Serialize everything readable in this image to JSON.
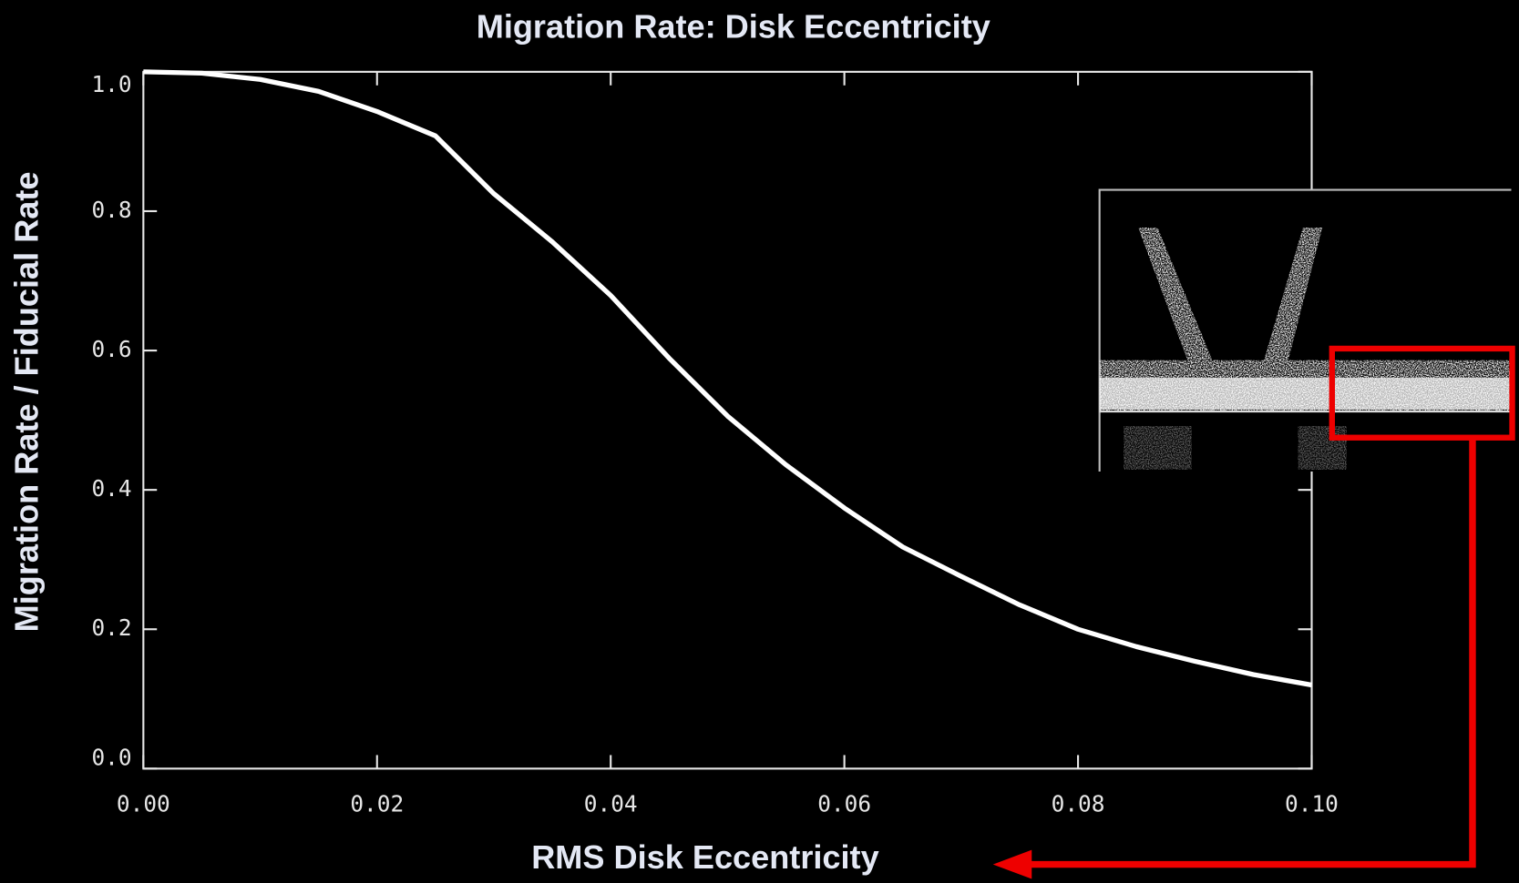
{
  "chart_data": {
    "type": "line",
    "title": "Migration Rate: Disk Eccentricity",
    "xlabel": "RMS Disk Eccentricity",
    "ylabel": "Migration Rate / Fiducial Rate",
    "x": [
      0,
      0.005,
      0.01,
      0.015,
      0.02,
      0.025,
      0.03,
      0.035,
      0.04,
      0.045,
      0.05,
      0.055,
      0.06,
      0.065,
      0.07,
      0.075,
      0.08,
      0.085,
      0.09,
      0.095,
      0.1
    ],
    "series": [
      {
        "name": "Migration rate",
        "color": "#ffffff",
        "values": [
          1.0,
          0.998,
          0.989,
          0.972,
          0.943,
          0.908,
          0.825,
          0.756,
          0.679,
          0.589,
          0.506,
          0.436,
          0.374,
          0.318,
          0.276,
          0.235,
          0.2,
          0.175,
          0.154,
          0.135,
          0.12
        ]
      }
    ],
    "xlim": [
      0,
      0.1
    ],
    "xticks": [
      {
        "value": 0,
        "label": "0.00"
      },
      0.02,
      0.04,
      0.06,
      0.08,
      {
        "value": 0.1,
        "label": "0.10"
      }
    ],
    "ylim": [
      0,
      1.0
    ],
    "yticks": [
      {
        "value": 0,
        "label": "0.0"
      },
      0.2,
      0.4,
      0.6,
      0.8,
      {
        "value": 1.0,
        "label": "1.0"
      }
    ]
  }
}
